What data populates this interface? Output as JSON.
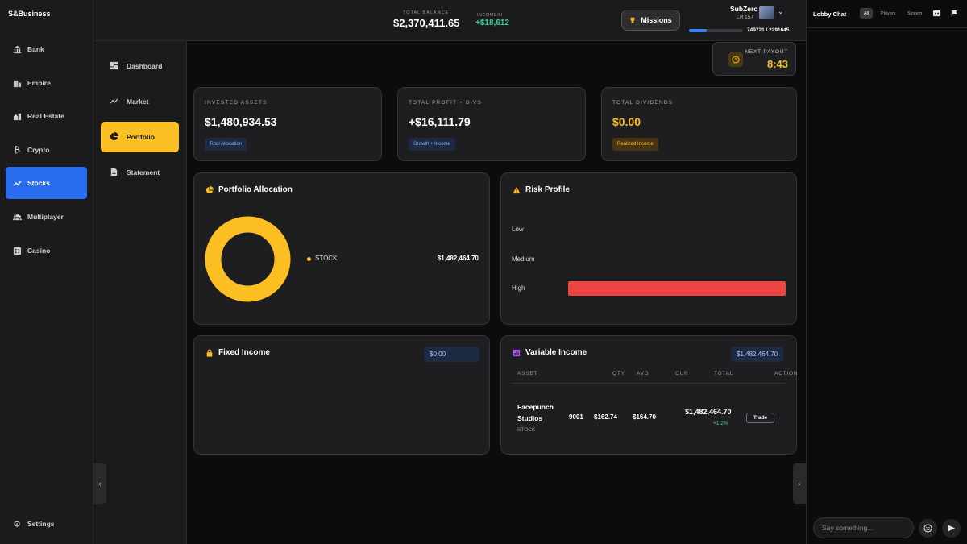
{
  "app": {
    "brand": "S&Business"
  },
  "sidebar": {
    "items": [
      {
        "label": "Bank",
        "icon": "bank-icon"
      },
      {
        "label": "Empire",
        "icon": "building-icon"
      },
      {
        "label": "Real Estate",
        "icon": "real-estate-icon"
      },
      {
        "label": "Crypto",
        "icon": "bitcoin-icon"
      },
      {
        "label": "Stocks",
        "icon": "trending-up-icon",
        "active": true
      },
      {
        "label": "Multiplayer",
        "icon": "group-icon"
      },
      {
        "label": "Casino",
        "icon": "dice-icon"
      }
    ],
    "settings": "Settings",
    "collapse": "‹"
  },
  "subnav": {
    "items": [
      {
        "label": "Dashboard",
        "icon": "dashboard-icon"
      },
      {
        "label": "Market",
        "icon": "chart-line-icon"
      },
      {
        "label": "Portfolio",
        "icon": "pie-chart-icon",
        "active": true
      },
      {
        "label": "Statement",
        "icon": "document-icon"
      }
    ]
  },
  "header": {
    "balance_label": "TOTAL BALANCE",
    "balance_value": "$2,370,411.65",
    "income_label": "INCOME/H",
    "income_value": "+$18,612",
    "missions_label": "Missions",
    "username": "SubZero",
    "level": "Lvl 157",
    "xp_text": "749721 / 2291645",
    "xp_fraction": 0.327
  },
  "payout": {
    "label": "NEXT PAYOUT",
    "value": "8:43"
  },
  "stats": [
    {
      "label": "INVESTED ASSETS",
      "value": "$1,480,934.53",
      "pill": "Total Allocation",
      "color": "#ffffff"
    },
    {
      "label": "TOTAL PROFIT + DIVS",
      "value": "+$16,111.79",
      "pill": "Growth + Income",
      "color": "#ffffff"
    },
    {
      "label": "TOTAL DIVIDENDS",
      "value": "$0.00",
      "pill": "Realized Income",
      "color": "#fbbf24"
    }
  ],
  "allocation": {
    "title": "Portfolio Allocation",
    "legend": [
      {
        "name": "STOCK",
        "value": "$1,482,464.70",
        "color": "#fbbf24"
      }
    ]
  },
  "risk": {
    "title": "Risk Profile",
    "levels": [
      {
        "label": "Low",
        "fraction": 0
      },
      {
        "label": "Medium",
        "fraction": 0
      },
      {
        "label": "High",
        "fraction": 1
      }
    ]
  },
  "fixed_income": {
    "title": "Fixed Income",
    "amount": "$0.00"
  },
  "variable_income": {
    "title": "Variable Income",
    "amount": "$1,482,464.70",
    "columns": [
      "ASSET",
      "QTY",
      "AVG",
      "CUR",
      "TOTAL",
      "ACTION"
    ],
    "rows": [
      {
        "name_line1": "Facepunch",
        "name_line2": "Studios",
        "type": "STOCK",
        "qty": "9001",
        "avg": "$162.74",
        "cur": "$164.70",
        "total": "$1,482,464.70",
        "change": "+1.2%",
        "action": "Trade"
      }
    ]
  },
  "chat": {
    "title": "Lobby Chat",
    "tabs": [
      "All",
      "Players",
      "System"
    ],
    "placeholder": "Say something..."
  },
  "right_toggle": "›"
}
